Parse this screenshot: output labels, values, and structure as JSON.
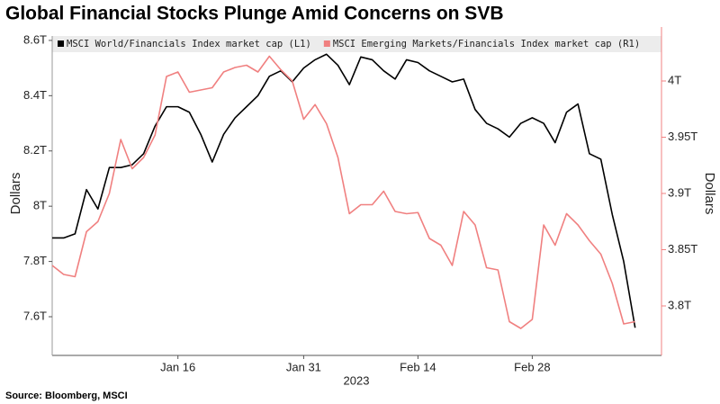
{
  "chart_data": {
    "type": "line",
    "title": "Global Financial Stocks Plunge Amid Concerns on SVB",
    "source": "Source: Bloomberg, MSCI",
    "xlabel": "2023",
    "ylabel": "Dollars",
    "y2label": "Dollars",
    "categories": [
      null,
      null,
      null,
      null,
      null,
      null,
      null,
      null,
      null,
      null,
      null,
      "Jan 16",
      null,
      null,
      null,
      null,
      null,
      null,
      null,
      null,
      null,
      null,
      "Jan 31",
      null,
      null,
      null,
      null,
      null,
      null,
      null,
      null,
      null,
      "Feb 14",
      null,
      null,
      null,
      null,
      null,
      null,
      null,
      null,
      null,
      "Feb 28",
      null,
      null,
      null,
      null,
      null,
      null,
      null,
      null,
      null
    ],
    "series": [
      {
        "name": "MSCI World/Financials Index market cap (L1)",
        "color": "#000000",
        "axis": "y",
        "values": [
          7.885,
          7.885,
          7.9,
          8.06,
          7.99,
          8.14,
          8.14,
          8.15,
          8.19,
          8.29,
          8.36,
          8.36,
          8.34,
          8.26,
          8.16,
          8.26,
          8.32,
          8.36,
          8.4,
          8.47,
          8.49,
          8.45,
          8.5,
          8.53,
          8.55,
          8.51,
          8.44,
          8.54,
          8.53,
          8.49,
          8.46,
          8.53,
          8.52,
          8.49,
          8.47,
          8.45,
          8.46,
          8.35,
          8.3,
          8.28,
          8.25,
          8.3,
          8.32,
          8.3,
          8.23,
          8.34,
          8.37,
          8.19,
          8.17,
          7.97,
          7.8,
          7.56
        ]
      },
      {
        "name": "MSCI Emerging Markets/Financials Index market cap (R1)",
        "color": "#f08080",
        "axis": "y2",
        "values": [
          3.836,
          3.828,
          3.826,
          3.866,
          3.875,
          3.9,
          3.948,
          3.922,
          3.932,
          3.952,
          4.004,
          4.008,
          3.99,
          3.992,
          3.994,
          4.008,
          4.012,
          4.014,
          4.008,
          4.022,
          4.01,
          4.0,
          3.966,
          3.979,
          3.962,
          3.932,
          3.882,
          3.89,
          3.89,
          3.902,
          3.884,
          3.882,
          3.883,
          3.86,
          3.854,
          3.836,
          3.884,
          3.872,
          3.834,
          3.832,
          3.786,
          3.78,
          3.788,
          3.872,
          3.854,
          3.882,
          3.872,
          3.858,
          3.846,
          3.82,
          3.784,
          3.786
        ]
      }
    ],
    "ylim": [
      7.46,
      8.616
    ],
    "yticks": [
      {
        "value": 7.6,
        "label": "7.6T"
      },
      {
        "value": 7.8,
        "label": "7.8T"
      },
      {
        "value": 8,
        "label": "8T"
      },
      {
        "value": 8.2,
        "label": "8.2T"
      },
      {
        "value": 8.4,
        "label": "8.4T"
      },
      {
        "value": 8.6,
        "label": "8.6T"
      }
    ],
    "y2lim": [
      3.756,
      4.04
    ],
    "y2ticks": [
      {
        "value": 3.8,
        "label": "3.8T"
      },
      {
        "value": 3.85,
        "label": "3.85T"
      },
      {
        "value": 3.9,
        "label": "3.9T"
      },
      {
        "value": 3.95,
        "label": "3.95T"
      },
      {
        "value": 4,
        "label": "4T"
      }
    ],
    "y2color": "#f08080",
    "grid": false
  }
}
